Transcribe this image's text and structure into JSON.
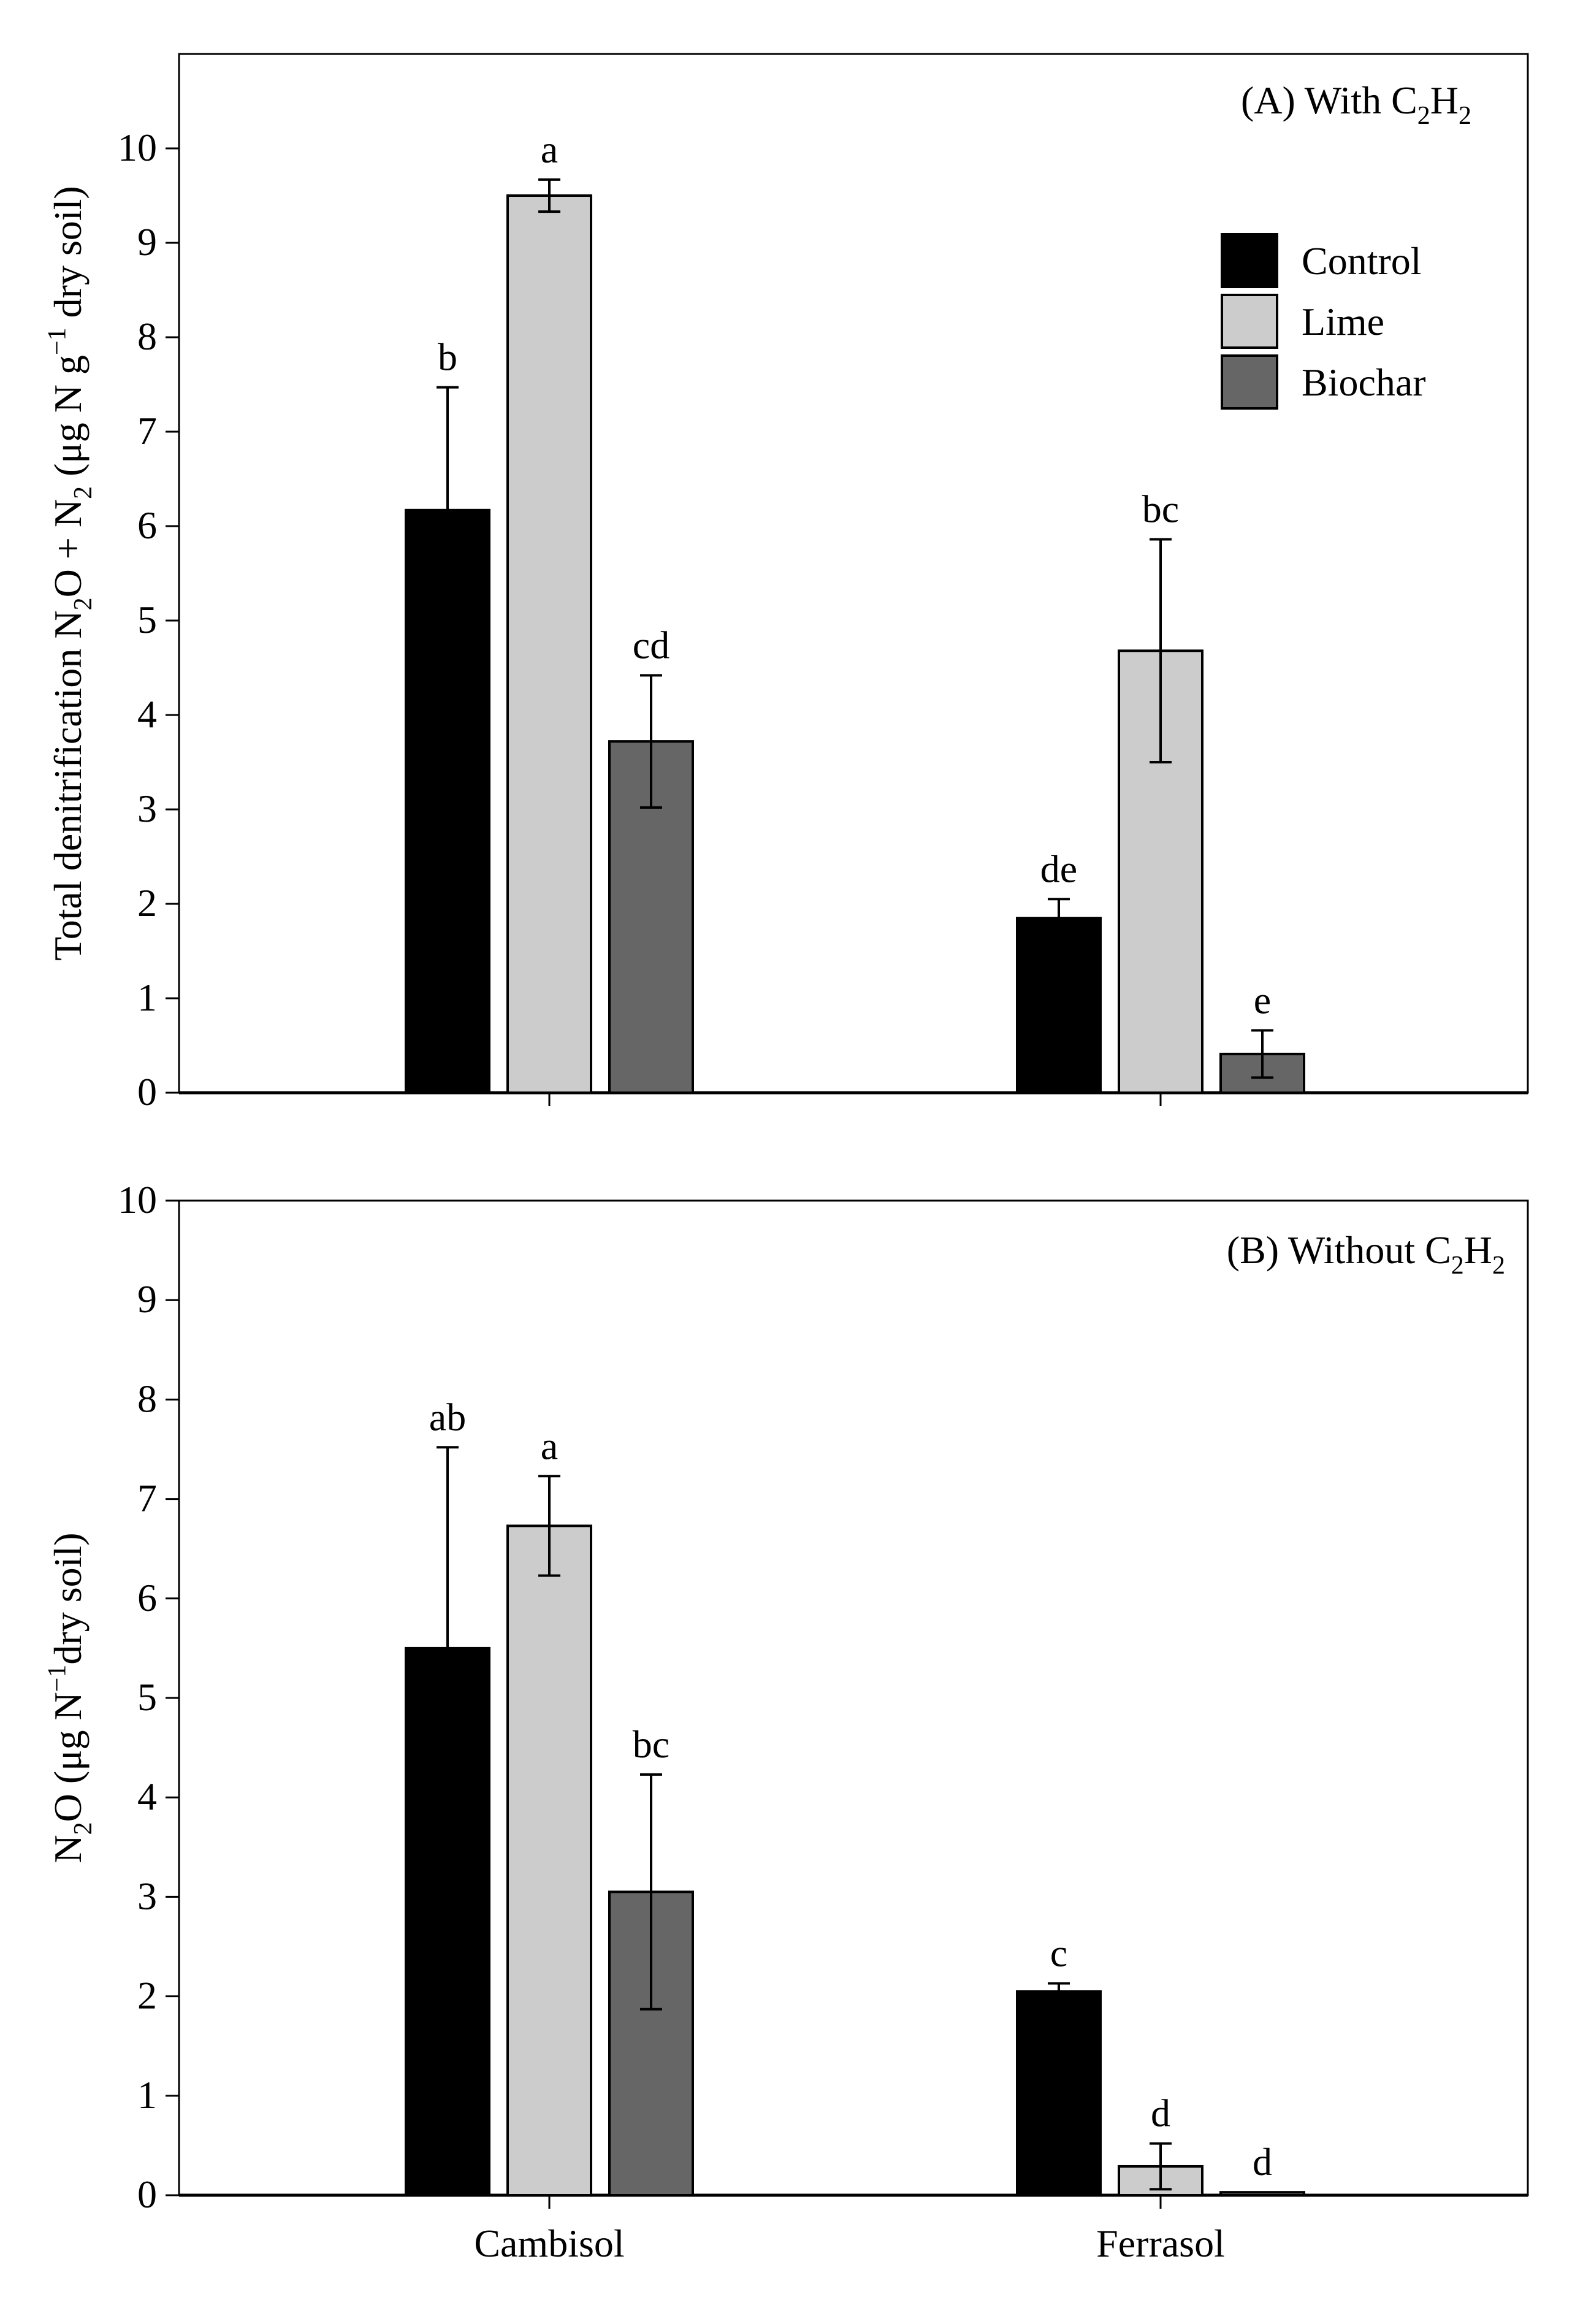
{
  "figure": {
    "legend": [
      {
        "label": "Control",
        "color": "#000000"
      },
      {
        "label": "Lime",
        "color": "#cccccc"
      },
      {
        "label": "Biochar",
        "color": "#666666"
      }
    ]
  },
  "chart_data": [
    {
      "type": "bar",
      "panel_title": "(A) With C₂H₂",
      "ylabel": "Total denitrification N₂O + N₂ (μg N g⁻¹ dry soil)",
      "xlabel": "",
      "ylim": [
        0,
        11
      ],
      "yticks": [
        0,
        1,
        2,
        3,
        4,
        5,
        6,
        7,
        8,
        9,
        10
      ],
      "categories": [
        "Cambisol",
        "Ferrasol"
      ],
      "show_category_labels": false,
      "legend_position": "top-right",
      "grid": false,
      "series": [
        {
          "name": "Control",
          "values": [
            6.17,
            1.85
          ],
          "errors": [
            1.3,
            0.2
          ],
          "letters": [
            "b",
            "de"
          ]
        },
        {
          "name": "Lime",
          "values": [
            9.5,
            4.68
          ],
          "errors": [
            0.17,
            1.18
          ],
          "letters": [
            "a",
            "bc"
          ]
        },
        {
          "name": "Biochar",
          "values": [
            3.72,
            0.41
          ],
          "errors": [
            0.7,
            0.25
          ],
          "letters": [
            "cd",
            "e"
          ]
        }
      ]
    },
    {
      "type": "bar",
      "panel_title": "(B) Without C₂H₂",
      "ylabel": "N₂O (μg N⁻¹dry soil)",
      "xlabel": "",
      "ylim": [
        0,
        10
      ],
      "yticks": [
        0,
        1,
        2,
        3,
        4,
        5,
        6,
        7,
        8,
        9,
        10
      ],
      "categories": [
        "Cambisol",
        "Ferrasol"
      ],
      "show_category_labels": true,
      "grid": false,
      "series": [
        {
          "name": "Control",
          "values": [
            5.5,
            2.05
          ],
          "errors": [
            2.02,
            0.08
          ],
          "letters": [
            "ab",
            "c"
          ]
        },
        {
          "name": "Lime",
          "values": [
            6.73,
            0.29
          ],
          "errors": [
            0.5,
            0.23
          ],
          "letters": [
            "a",
            "d"
          ]
        },
        {
          "name": "Biochar",
          "values": [
            3.05,
            0.03
          ],
          "errors": [
            1.18,
            0.0
          ],
          "letters": [
            "bc",
            "d"
          ]
        }
      ]
    }
  ]
}
